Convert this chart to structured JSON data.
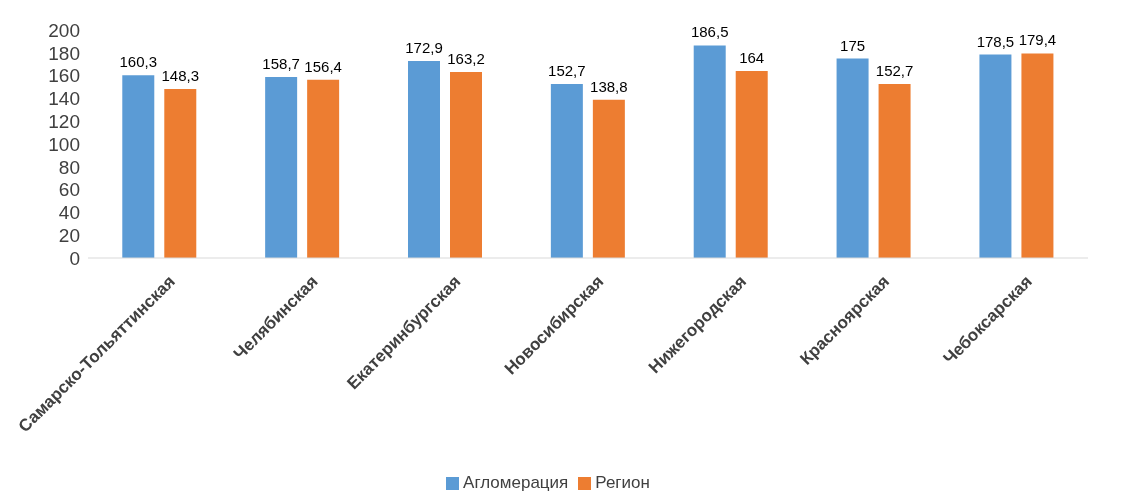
{
  "chart_data": {
    "type": "bar",
    "categories": [
      "Самарско-Тольяттинская",
      "Челябинская",
      "Екатеринбургская",
      "Новосибирская",
      "Нижегородская",
      "Красноярская",
      "Чебоксарская"
    ],
    "series": [
      {
        "name": "Агломерация",
        "color": "#5b9bd5",
        "values": [
          160.3,
          158.7,
          172.9,
          152.7,
          186.5,
          175,
          178.5
        ],
        "value_labels": [
          "160,3",
          "158,7",
          "172,9",
          "152,7",
          "186,5",
          "175",
          "178,5"
        ]
      },
      {
        "name": "Регион",
        "color": "#ed7d31",
        "values": [
          148.3,
          156.4,
          163.2,
          138.8,
          164,
          152.7,
          179.4
        ],
        "value_labels": [
          "148,3",
          "156,4",
          "163,2",
          "138,8",
          "164",
          "152,7",
          "179,4"
        ]
      }
    ],
    "ylim": [
      0,
      200
    ],
    "yticks": [
      0,
      20,
      40,
      60,
      80,
      100,
      120,
      140,
      160,
      180,
      200
    ],
    "grid": false,
    "legend": "bottom"
  }
}
